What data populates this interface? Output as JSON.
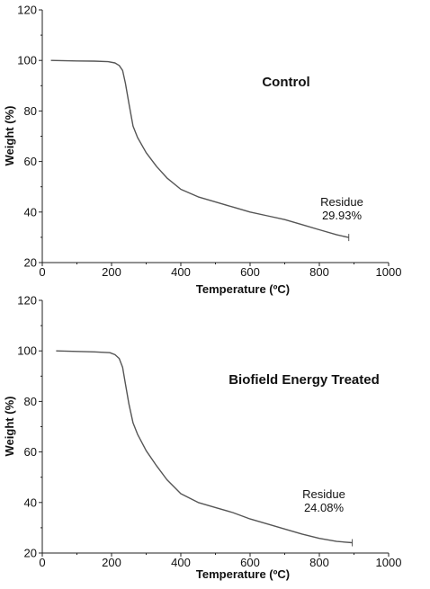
{
  "chart_data": [
    {
      "type": "line",
      "title": "Control",
      "xlabel": "Temperature (ºC)",
      "ylabel": "Weight (%)",
      "xlim": [
        0,
        1000
      ],
      "ylim": [
        20,
        120
      ],
      "xticks": [
        "0",
        "200",
        "400",
        "600",
        "800",
        "1000"
      ],
      "yticks": [
        "20",
        "40",
        "60",
        "80",
        "100",
        "120"
      ],
      "grid": false,
      "annotation": {
        "lines": [
          "Residue",
          "29.93%"
        ],
        "x": 885,
        "y": 29.93
      },
      "series": [
        {
          "color": "#555555",
          "x": [
            25,
            100,
            150,
            190,
            210,
            222,
            232,
            240,
            250,
            262,
            275,
            300,
            330,
            360,
            400,
            450,
            500,
            550,
            600,
            650,
            700,
            750,
            800,
            850,
            885
          ],
          "y": [
            100,
            99.8,
            99.7,
            99.5,
            99.0,
            98.0,
            96.0,
            91.0,
            83.0,
            74.0,
            69.5,
            63.5,
            58.0,
            53.5,
            49.0,
            46.0,
            44.0,
            42.0,
            40.0,
            38.5,
            37.0,
            35.0,
            33.0,
            31.0,
            29.93
          ]
        }
      ]
    },
    {
      "type": "line",
      "title": "Biofield Energy Treated",
      "xlabel": "Temperature (ºC)",
      "ylabel": "Weight (%)",
      "xlim": [
        0,
        1000
      ],
      "ylim": [
        20,
        120
      ],
      "xticks": [
        "0",
        "200",
        "400",
        "600",
        "800",
        "1000"
      ],
      "yticks": [
        "20",
        "40",
        "60",
        "80",
        "100",
        "120"
      ],
      "grid": false,
      "annotation": {
        "lines": [
          "Residue",
          "24.08%"
        ],
        "x": 895,
        "y": 24.08
      },
      "series": [
        {
          "color": "#555555",
          "x": [
            40,
            100,
            150,
            195,
            210,
            222,
            232,
            240,
            250,
            262,
            275,
            300,
            330,
            360,
            400,
            450,
            500,
            550,
            600,
            650,
            700,
            750,
            800,
            850,
            895
          ],
          "y": [
            100,
            99.8,
            99.6,
            99.3,
            98.5,
            97.0,
            93.5,
            87.0,
            79.0,
            71.5,
            67.0,
            60.5,
            54.5,
            49.0,
            43.5,
            40.0,
            38.0,
            36.0,
            33.5,
            31.5,
            29.5,
            27.5,
            25.8,
            24.6,
            24.08
          ]
        }
      ]
    }
  ]
}
